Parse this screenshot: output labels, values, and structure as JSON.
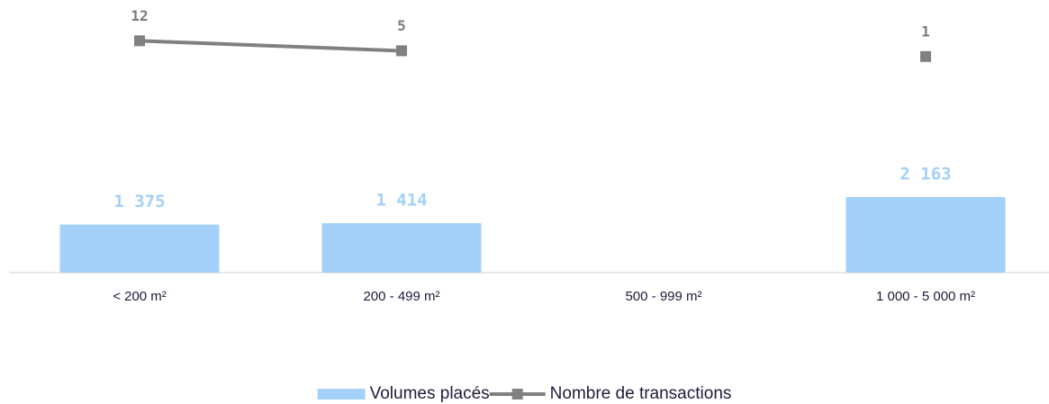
{
  "chart_data": {
    "type": "bar-line",
    "categories": [
      "< 200 m²",
      "200 - 499 m²",
      "500 - 999 m²",
      "1 000 - 5 000 m²"
    ],
    "series": [
      {
        "name": "Volumes placés",
        "type": "bar",
        "color": "#a3d1fa",
        "values": [
          1375,
          1414,
          null,
          2163
        ],
        "value_labels": [
          "1 375",
          "1 414",
          null,
          "2 163"
        ]
      },
      {
        "name": "Nombre de transactions",
        "type": "line",
        "axis": "y2",
        "color": "#808080",
        "values": [
          12,
          5,
          null,
          1
        ]
      }
    ],
    "ylim": [
      0,
      7000
    ],
    "y2lim": [
      -150,
      21
    ],
    "grid": false,
    "legend": "bottom"
  }
}
